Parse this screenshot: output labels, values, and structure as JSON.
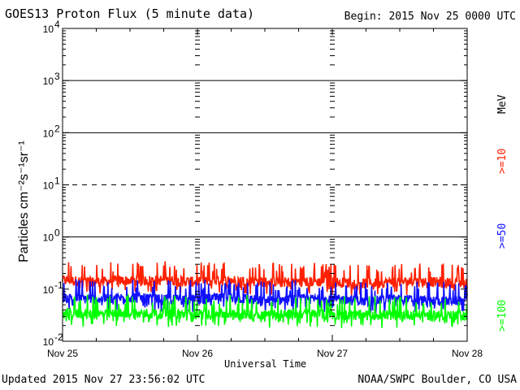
{
  "header": {
    "title": "GOES13 Proton Flux (5 minute data)",
    "begin": "Begin: 2015 Nov 25 0000 UTC"
  },
  "footer": {
    "updated": "Updated 2015 Nov 27 23:56:02 UTC",
    "credit": "NOAA/SWPC Boulder, CO USA"
  },
  "legend": {
    "unit": "MeV",
    "ge10": ">=10",
    "ge50": ">=50",
    "ge100": ">=100"
  },
  "chart_data": {
    "type": "line",
    "title": "GOES13 Proton Flux (5 minute data)",
    "xlabel": "Universal Time",
    "ylabel": "Particles cm⁻²s⁻¹sr⁻¹",
    "y_scale": "log",
    "ylim": [
      0.01,
      10000
    ],
    "xlim": [
      "2015-11-25 00:00",
      "2015-11-28 00:00"
    ],
    "x_tick_labels": [
      "Nov 25",
      "Nov 26",
      "Nov 27",
      "Nov 28"
    ],
    "y_ticks": [
      {
        "base": "10",
        "exp": "-2",
        "value": 0.01
      },
      {
        "base": "10",
        "exp": "-1",
        "value": 0.1
      },
      {
        "base": "10",
        "exp": "0",
        "value": 1
      },
      {
        "base": "10",
        "exp": "1",
        "value": 10
      },
      {
        "base": "10",
        "exp": "2",
        "value": 100
      },
      {
        "base": "10",
        "exp": "3",
        "value": 1000
      },
      {
        "base": "10",
        "exp": "4",
        "value": 10000
      }
    ],
    "grid_lines": [
      {
        "value": 1,
        "style": "solid"
      },
      {
        "value": 10,
        "style": "dashed"
      },
      {
        "value": 100,
        "style": "solid"
      },
      {
        "value": 1000,
        "style": "solid"
      }
    ],
    "series": [
      {
        "name": ">=10 MeV",
        "color": "#ff2000",
        "x": [
          "Nov 25 00:00",
          "Nov 25 06:00",
          "Nov 25 12:00",
          "Nov 25 18:00",
          "Nov 26 00:00",
          "Nov 26 06:00",
          "Nov 26 12:00",
          "Nov 26 18:00",
          "Nov 27 00:00",
          "Nov 27 06:00",
          "Nov 27 12:00",
          "Nov 27 18:00",
          "Nov 28 00:00"
        ],
        "values": [
          0.15,
          0.14,
          0.15,
          0.15,
          0.14,
          0.15,
          0.14,
          0.14,
          0.14,
          0.13,
          0.14,
          0.14,
          0.13
        ]
      },
      {
        "name": ">=50 MeV",
        "color": "#1010ff",
        "x": [
          "Nov 25 00:00",
          "Nov 25 06:00",
          "Nov 25 12:00",
          "Nov 25 18:00",
          "Nov 26 00:00",
          "Nov 26 06:00",
          "Nov 26 12:00",
          "Nov 26 18:00",
          "Nov 27 00:00",
          "Nov 27 06:00",
          "Nov 27 12:00",
          "Nov 27 18:00",
          "Nov 28 00:00"
        ],
        "values": [
          0.07,
          0.065,
          0.07,
          0.065,
          0.065,
          0.07,
          0.06,
          0.065,
          0.065,
          0.06,
          0.065,
          0.06,
          0.06
        ]
      },
      {
        "name": ">=100 MeV",
        "color": "#00ff00",
        "x": [
          "Nov 25 00:00",
          "Nov 25 06:00",
          "Nov 25 12:00",
          "Nov 25 18:00",
          "Nov 26 00:00",
          "Nov 26 06:00",
          "Nov 26 12:00",
          "Nov 26 18:00",
          "Nov 27 00:00",
          "Nov 27 06:00",
          "Nov 27 12:00",
          "Nov 27 18:00",
          "Nov 28 00:00"
        ],
        "values": [
          0.035,
          0.033,
          0.035,
          0.034,
          0.033,
          0.034,
          0.033,
          0.034,
          0.033,
          0.032,
          0.033,
          0.032,
          0.032
        ]
      }
    ]
  }
}
